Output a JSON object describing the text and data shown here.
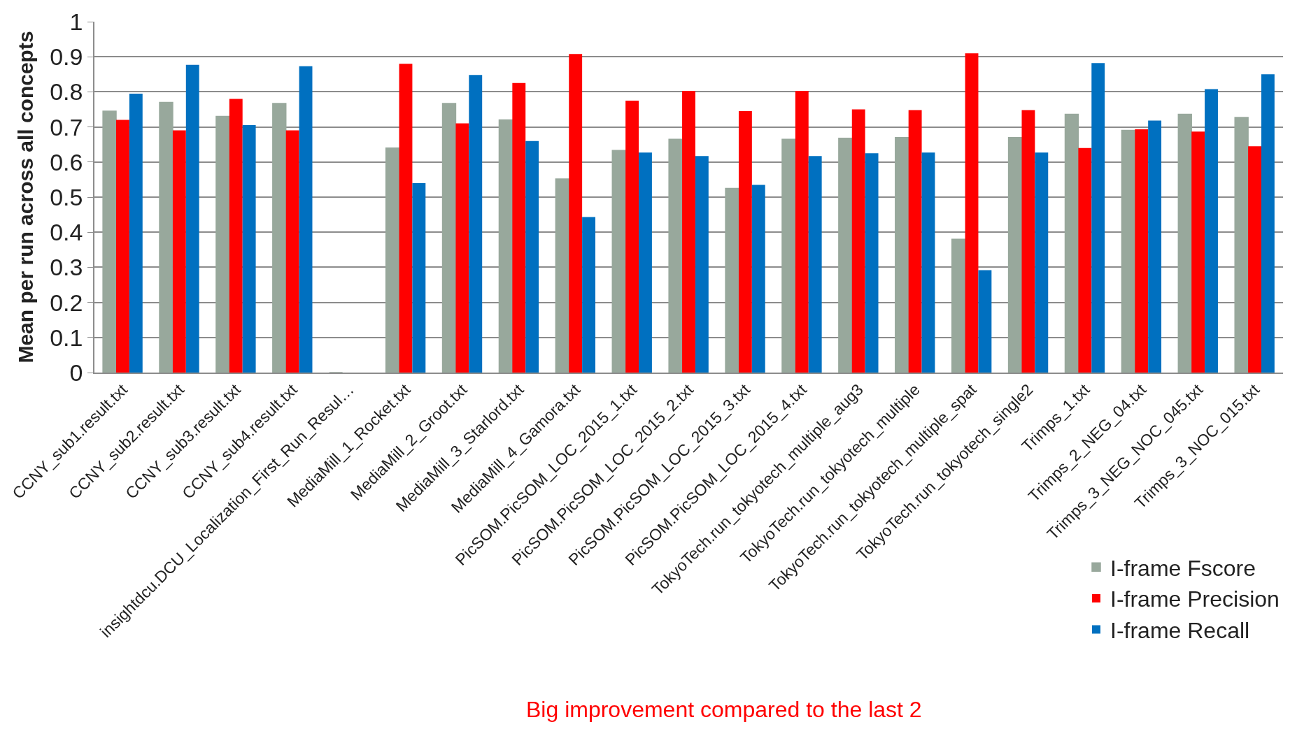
{
  "chart_data": {
    "type": "bar",
    "ylabel": "Mean per run across all concepts",
    "categories": [
      "CCNY_sub1.result.txt",
      "CCNY_sub2.result.txt",
      "CCNY_sub3.result.txt",
      "CCNY_sub4.result.txt",
      "insightdcu.DCU_Localization_First_Run_Resul…",
      "MediaMill_1_Rocket.txt",
      "MediaMill_2_Groot.txt",
      "MediaMill_3_Starlord.txt",
      "MediaMill_4_Gamora.txt",
      "PicSOM.PicSOM_LOC_2015_1.txt",
      "PicSOM.PicSOM_LOC_2015_2.txt",
      "PicSOM.PicSOM_LOC_2015_3.txt",
      "PicSOM.PicSOM_LOC_2015_4.txt",
      "TokyoTech.run_tokyotech_multiple_aug3",
      "TokyoTech.run_tokyotech_multiple",
      "TokyoTech.run_tokyotech_multiple_spat",
      "TokyoTech.run_tokyotech_single2",
      "Trimps_1.txt",
      "Trimps_2_NEG_04.txt",
      "Trimps_3_NEG_NOC_045.txt",
      "Trimps_3_NOC_015.txt"
    ],
    "series": [
      {
        "name": "I-frame Fscore",
        "color": "#98a89c",
        "values": [
          0.745,
          0.77,
          0.73,
          0.767,
          0,
          0.64,
          0.767,
          0.72,
          0.552,
          0.633,
          0.665,
          0.525,
          0.665,
          0.668,
          0.67,
          0.38,
          0.67,
          0.736,
          0.69,
          0.736,
          0.727
        ]
      },
      {
        "name": "I-frame Precision",
        "color": "#ff0000",
        "values": [
          0.72,
          0.69,
          0.78,
          0.69,
          0,
          0.88,
          0.71,
          0.825,
          0.908,
          0.775,
          0.803,
          0.745,
          0.803,
          0.75,
          0.748,
          0.91,
          0.748,
          0.64,
          0.693,
          0.687,
          0.645
        ]
      },
      {
        "name": "I-frame Recall",
        "color": "#0070c0",
        "values": [
          0.795,
          0.877,
          0.705,
          0.873,
          0,
          0.54,
          0.848,
          0.66,
          0.443,
          0.627,
          0.617,
          0.535,
          0.617,
          0.625,
          0.627,
          0.292,
          0.627,
          0.882,
          0.718,
          0.808,
          0.85
        ]
      }
    ],
    "ylim": [
      0,
      1
    ],
    "yticks": [
      0,
      0.1,
      0.2,
      0.3,
      0.4,
      0.5,
      0.6,
      0.7,
      0.8,
      0.9,
      1
    ],
    "grid": "y",
    "legend": "bottom right",
    "annotations": [
      "Big improvement compared to the last 2"
    ]
  }
}
